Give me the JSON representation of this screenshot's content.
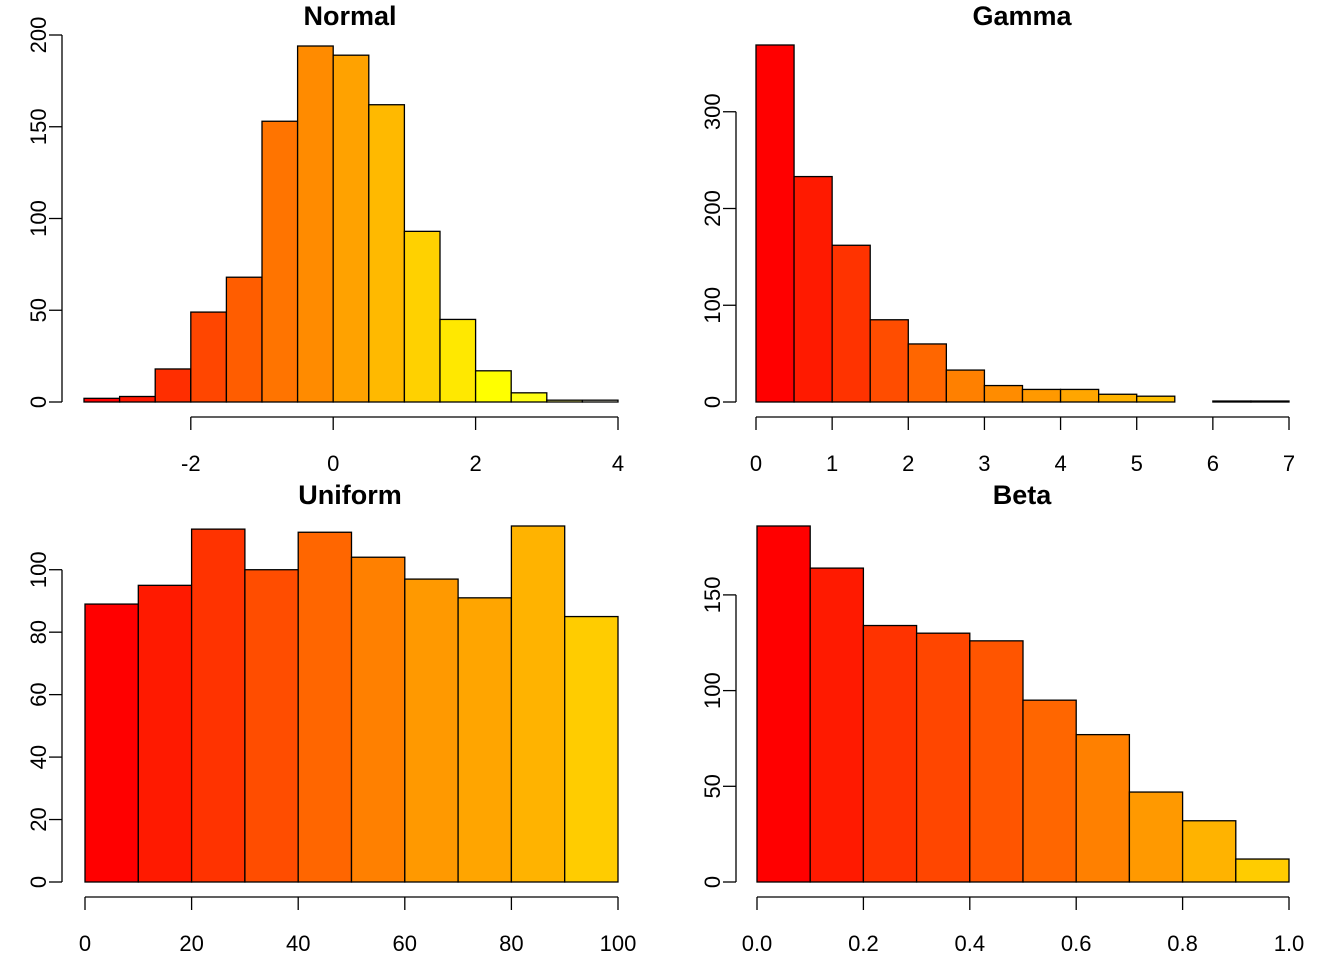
{
  "chart_data": [
    {
      "type": "histogram",
      "title": "Normal",
      "bins": [
        -3.5,
        -3,
        -2.5,
        -2,
        -1.5,
        -1,
        -0.5,
        0,
        0.5,
        1,
        1.5,
        2,
        2.5,
        3,
        3.5,
        4
      ],
      "values": [
        2,
        3,
        18,
        49,
        68,
        153,
        194,
        189,
        162,
        93,
        45,
        17,
        5,
        1,
        1
      ],
      "colors": [
        "#FF0000",
        "#FF1700",
        "#FF2E00",
        "#FF4600",
        "#FF5D00",
        "#FF7400",
        "#FF8B00",
        "#FFA200",
        "#FFB900",
        "#FFD100",
        "#FFE800",
        "#FFFF00",
        "#FFFF15",
        "#FFFF80",
        "#FFFFEA"
      ],
      "xlim": [
        -3.5,
        4
      ],
      "ylim": [
        0,
        200
      ],
      "xticks": [
        -2,
        0,
        2,
        4
      ],
      "yticks": [
        0,
        50,
        100,
        150,
        200
      ]
    },
    {
      "type": "histogram",
      "title": "Gamma",
      "bins": [
        0,
        0.5,
        1,
        1.5,
        2,
        2.5,
        3,
        3.5,
        4,
        4.5,
        5,
        5.5,
        6,
        6.5,
        7
      ],
      "values": [
        369,
        233,
        162,
        85,
        60,
        33,
        17,
        13,
        13,
        8,
        6,
        0,
        1,
        1
      ],
      "colors": [
        "#FF0000",
        "#FF1A00",
        "#FF3300",
        "#FF4D00",
        "#FF6600",
        "#FF8000",
        "#FF8C00",
        "#FF9900",
        "#FFA600",
        "#FFB300",
        "#FFC000",
        "#FFCC00",
        "#FFD900",
        "#FFE600"
      ],
      "xlim": [
        0,
        7
      ],
      "ylim": [
        0,
        369
      ],
      "xticks": [
        0,
        1,
        2,
        3,
        4,
        5,
        6,
        7
      ],
      "yticks": [
        0,
        100,
        200,
        300
      ]
    },
    {
      "type": "histogram",
      "title": "Uniform",
      "bins": [
        0,
        10,
        20,
        30,
        40,
        50,
        60,
        70,
        80,
        90,
        100
      ],
      "values": [
        89,
        95,
        113,
        100,
        112,
        104,
        97,
        91,
        114,
        85
      ],
      "colors": [
        "#FF0000",
        "#FF1A00",
        "#FF3300",
        "#FF4D00",
        "#FF6600",
        "#FF8000",
        "#FF9900",
        "#FFA500",
        "#FFB300",
        "#FFCC00"
      ],
      "xlim": [
        0,
        100
      ],
      "ylim": [
        0,
        114
      ],
      "xticks": [
        0,
        20,
        40,
        60,
        80,
        100
      ],
      "yticks": [
        0,
        20,
        40,
        60,
        80,
        100
      ]
    },
    {
      "type": "histogram",
      "title": "Beta",
      "bins": [
        0,
        0.1,
        0.2,
        0.3,
        0.4,
        0.5,
        0.6,
        0.7,
        0.8,
        0.9,
        1
      ],
      "values": [
        186,
        164,
        134,
        130,
        126,
        95,
        77,
        47,
        32,
        12
      ],
      "colors": [
        "#FF0000",
        "#FF1A00",
        "#FF3300",
        "#FF4600",
        "#FF5500",
        "#FF6600",
        "#FF8000",
        "#FF9900",
        "#FFB300",
        "#FFCC00"
      ],
      "xlim": [
        0,
        1
      ],
      "ylim": [
        0,
        186
      ],
      "xticks": [
        {
          "value": 0,
          "label": "0.0"
        },
        0.2,
        0.4,
        0.6,
        0.8,
        {
          "value": 1,
          "label": "1.0"
        }
      ],
      "yticks": [
        0,
        50,
        100,
        150
      ]
    }
  ]
}
